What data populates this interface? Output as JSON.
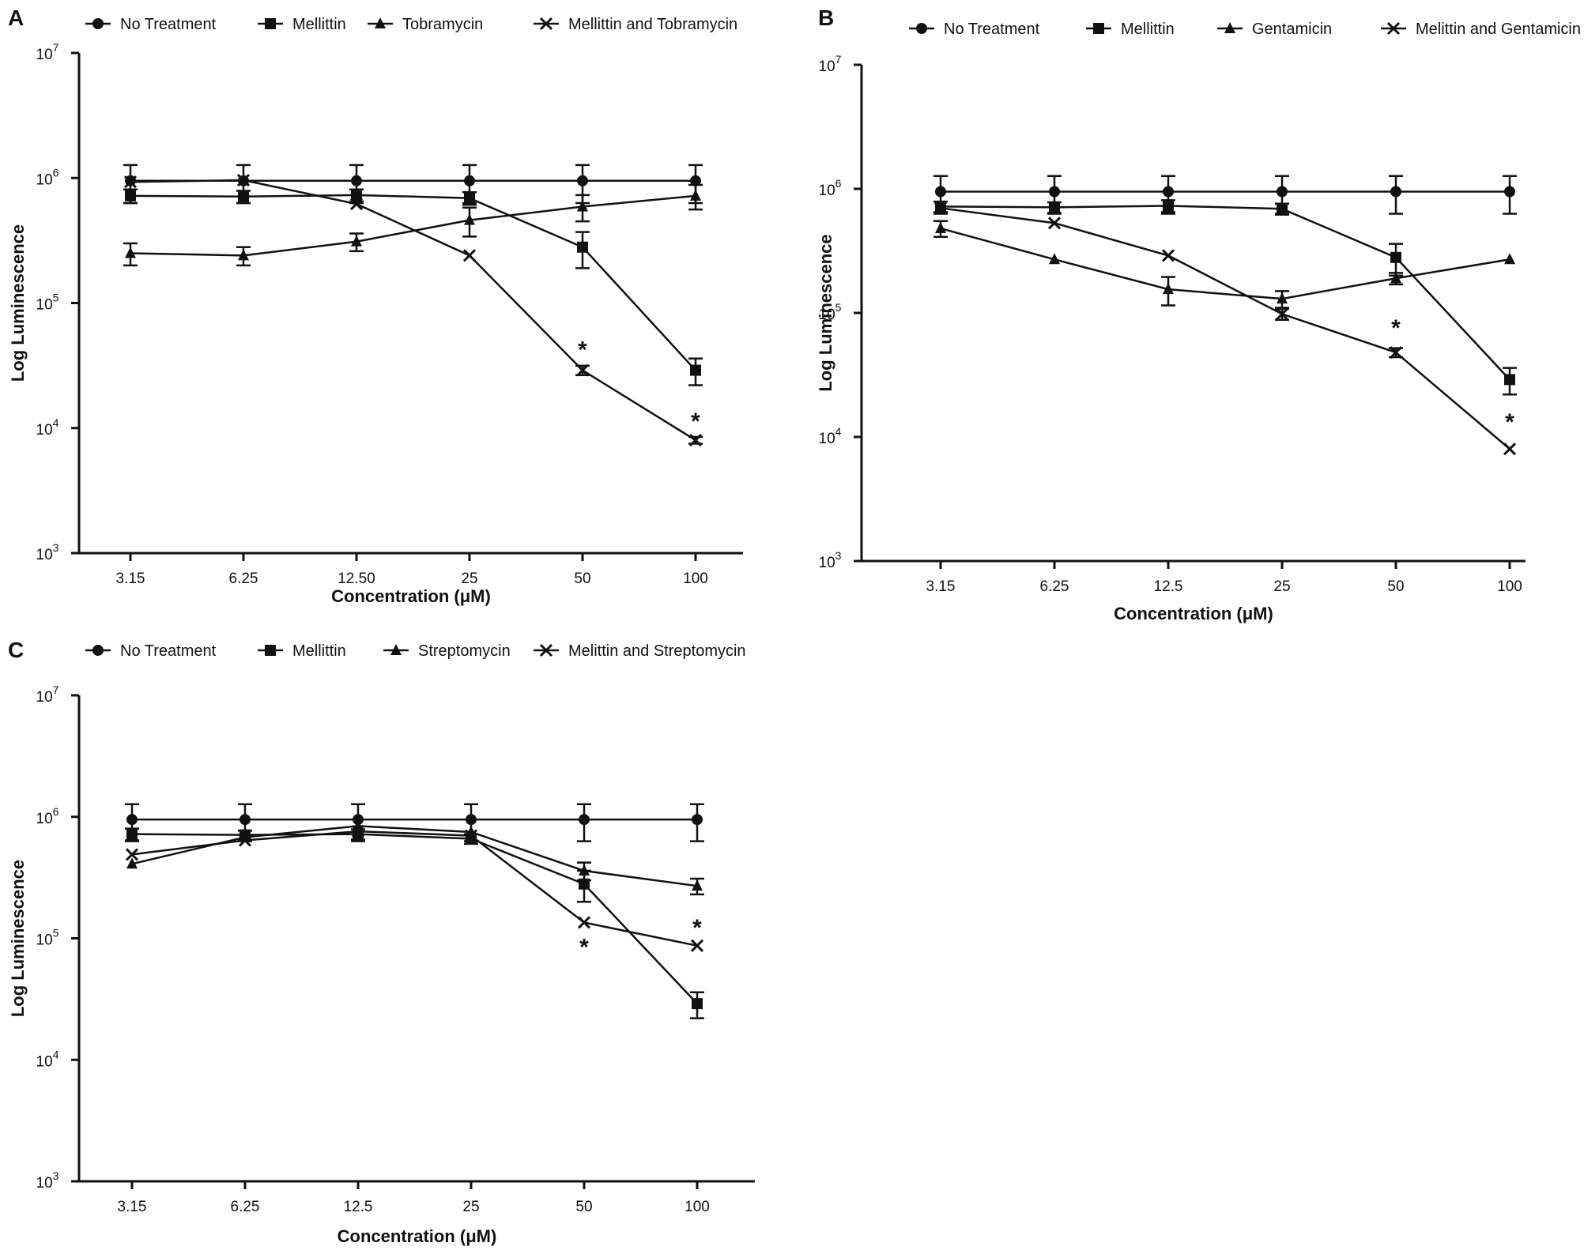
{
  "chart_data": [
    {
      "panel": "A",
      "type": "line",
      "xlabel": "Concentration (μM)",
      "ylabel": "Log Luminescence",
      "yscale": "log",
      "ylim": [
        1000,
        10000000
      ],
      "ytick_exponents": [
        "3",
        "4",
        "5",
        "6",
        "7"
      ],
      "ytick_base": "10",
      "categories": [
        "3.15",
        "6.25",
        "12.50",
        "25",
        "50",
        "100"
      ],
      "legend": "top",
      "series": [
        {
          "name": "No Treatment",
          "marker": "circle",
          "values": [
            950000,
            950000,
            950000,
            950000,
            950000,
            950000
          ],
          "errors": [
            320000,
            320000,
            320000,
            320000,
            320000,
            320000
          ]
        },
        {
          "name": "Mellittin",
          "marker": "square",
          "values": [
            720000,
            710000,
            730000,
            690000,
            280000,
            29000
          ],
          "errors": [
            90000,
            80000,
            80000,
            80000,
            90000,
            7000
          ]
        },
        {
          "name": "Tobramycin",
          "marker": "triangle",
          "values": [
            250000,
            240000,
            310000,
            460000,
            590000,
            720000
          ],
          "errors": [
            50000,
            40000,
            50000,
            120000,
            140000,
            160000
          ]
        },
        {
          "name": "Mellittin and Tobramycin",
          "marker": "x",
          "values": [
            930000,
            960000,
            620000,
            240000,
            29000,
            8000
          ],
          "errors": [
            0,
            0,
            0,
            0,
            2500,
            500
          ]
        }
      ],
      "annotations": [
        {
          "category": "50",
          "text": "*",
          "value": 45000
        },
        {
          "category": "100",
          "text": "*",
          "value": 12000
        }
      ]
    },
    {
      "panel": "B",
      "type": "line",
      "xlabel": "Concentration (μM)",
      "ylabel": "Log Luminescence",
      "yscale": "log",
      "ylim": [
        1000,
        10000000
      ],
      "ytick_exponents": [
        "3",
        "4",
        "5",
        "6",
        "7"
      ],
      "ytick_base": "10",
      "categories": [
        "3.15",
        "6.25",
        "12.5",
        "25",
        "50",
        "100"
      ],
      "legend": "top",
      "series": [
        {
          "name": "No Treatment",
          "marker": "circle",
          "values": [
            950000,
            950000,
            950000,
            950000,
            950000,
            950000
          ],
          "errors": [
            320000,
            320000,
            320000,
            320000,
            320000,
            320000
          ]
        },
        {
          "name": "Mellittin",
          "marker": "square",
          "values": [
            720000,
            710000,
            730000,
            690000,
            280000,
            29000
          ],
          "errors": [
            70000,
            70000,
            80000,
            70000,
            80000,
            7000
          ]
        },
        {
          "name": "Gentamicin",
          "marker": "triangle",
          "values": [
            480000,
            270000,
            155000,
            130000,
            190000,
            270000
          ],
          "errors": [
            70000,
            0,
            40000,
            20000,
            20000,
            0
          ]
        },
        {
          "name": "Melittin and Gentamicin",
          "marker": "x",
          "values": [
            700000,
            530000,
            290000,
            98000,
            48000,
            8000
          ],
          "errors": [
            0,
            0,
            0,
            10000,
            4000,
            0
          ]
        }
      ],
      "annotations": [
        {
          "category": "50",
          "text": "*",
          "value": 80000
        },
        {
          "category": "100",
          "text": "*",
          "value": 14000
        }
      ]
    },
    {
      "panel": "C",
      "type": "line",
      "xlabel": "Concentration (μM)",
      "ylabel": "Log Luminescence",
      "yscale": "log",
      "ylim": [
        1000,
        10000000
      ],
      "ytick_exponents": [
        "3",
        "4",
        "5",
        "6",
        "7"
      ],
      "ytick_base": "10",
      "categories": [
        "3.15",
        "6.25",
        "12.5",
        "25",
        "50",
        "100"
      ],
      "legend": "top",
      "series": [
        {
          "name": "No Treatment",
          "marker": "circle",
          "values": [
            950000,
            950000,
            950000,
            950000,
            950000,
            950000
          ],
          "errors": [
            320000,
            320000,
            320000,
            320000,
            320000,
            320000
          ]
        },
        {
          "name": "Mellittin",
          "marker": "square",
          "values": [
            720000,
            710000,
            720000,
            660000,
            280000,
            29000
          ],
          "errors": [
            80000,
            60000,
            70000,
            60000,
            80000,
            7000
          ]
        },
        {
          "name": "Streptomycin",
          "marker": "triangle",
          "values": [
            410000,
            680000,
            840000,
            750000,
            360000,
            270000
          ],
          "errors": [
            0,
            0,
            0,
            0,
            60000,
            40000
          ]
        },
        {
          "name": "Melittin and Streptomycin",
          "marker": "x",
          "values": [
            490000,
            640000,
            760000,
            700000,
            135000,
            87000
          ],
          "errors": [
            0,
            0,
            0,
            0,
            0,
            0
          ]
        }
      ],
      "annotations": [
        {
          "category": "50",
          "text": "*",
          "value": 90000
        },
        {
          "category": "100",
          "text": "*",
          "value": 130000
        }
      ]
    }
  ]
}
